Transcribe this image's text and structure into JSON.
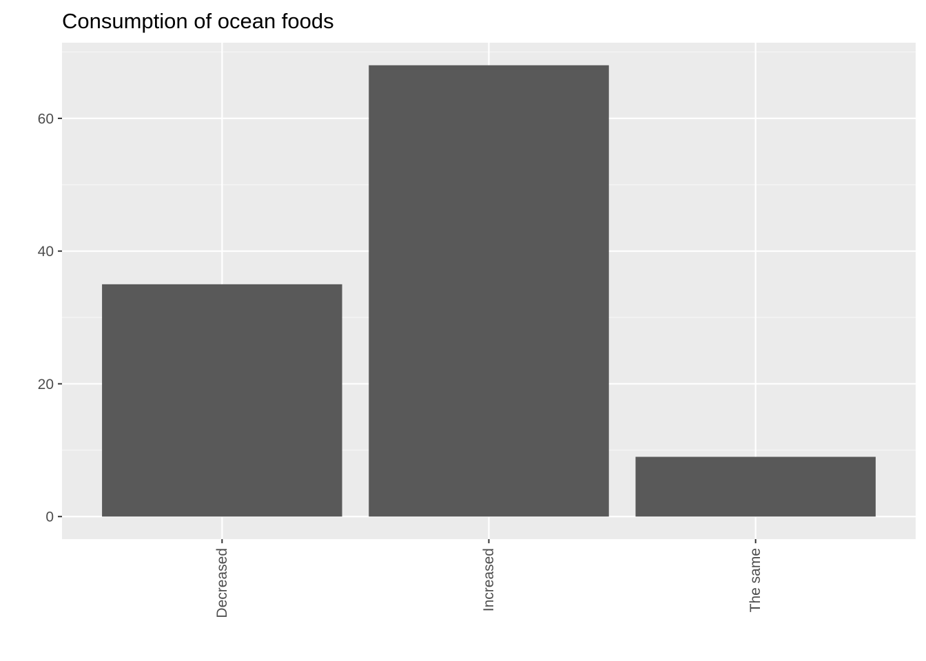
{
  "chart_data": {
    "type": "bar",
    "title": "Consumption of ocean foods",
    "xlabel": "",
    "ylabel": "",
    "categories": [
      "Decreased",
      "Increased",
      "The same"
    ],
    "values": [
      35,
      68,
      9
    ],
    "ylim": [
      -3.4,
      71.4
    ],
    "y_ticks": [
      0,
      20,
      40,
      60
    ],
    "y_tick_labels": [
      "0",
      "20",
      "40",
      "60"
    ],
    "grid": true,
    "x_tick_label_rotation": "vertical",
    "colors": {
      "bar": "#595959",
      "panel": "#ebebeb",
      "grid_major": "#ffffff",
      "grid_minor": "#f7f7f7",
      "tick_text": "#4d4d4d",
      "tick_mark": "#333333",
      "title": "#000000"
    }
  }
}
